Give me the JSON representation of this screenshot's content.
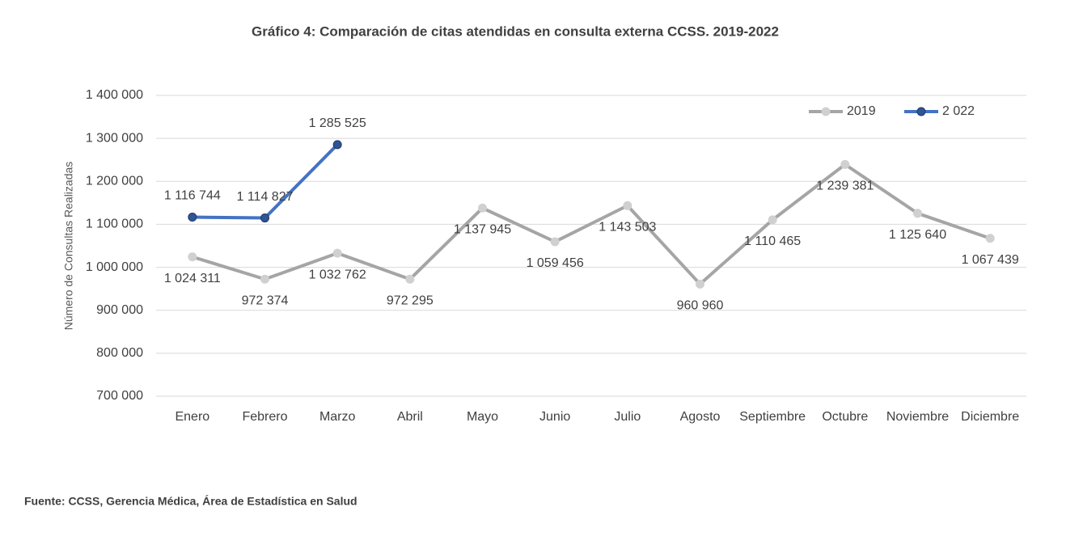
{
  "chart_data": {
    "type": "line",
    "title": "Gráfico 4: Comparación de citas atendidas en consulta externa CCSS. 2019-2022",
    "y_label": "Número de Consultas Realizadas",
    "source": "Fuente: CCSS, Gerencia Médica, Área de Estadística en Salud",
    "categories": [
      "Enero",
      "Febrero",
      "Marzo",
      "Abril",
      "Mayo",
      "Junio",
      "Julio",
      "Agosto",
      "Septiembre",
      "Octubre",
      "Noviembre",
      "Diciembre"
    ],
    "series": [
      {
        "name": "2019",
        "color": "#a5a5a5",
        "marker_color": "#d0d0d0",
        "values": [
          1024311,
          972374,
          1032762,
          972295,
          1137945,
          1059456,
          1143503,
          960960,
          1110465,
          1239381,
          1125640,
          1067439
        ],
        "value_labels": [
          "1 024 311",
          "972 374",
          "1 032 762",
          "972 295",
          "1 137 945",
          "1 059 456",
          "1 143 503",
          "960 960",
          "1 110 465",
          "1 239 381",
          "1 125 640",
          "1 067 439"
        ],
        "label_position": "below"
      },
      {
        "name": "2 022",
        "color": "#4472c4",
        "marker_color": "#2f5597",
        "values": [
          1116744,
          1114827,
          1285525,
          null,
          null,
          null,
          null,
          null,
          null,
          null,
          null,
          null
        ],
        "value_labels": [
          "1 116 744",
          "1 114 827",
          "1 285 525",
          null,
          null,
          null,
          null,
          null,
          null,
          null,
          null,
          null
        ],
        "label_position": "above"
      }
    ],
    "ylim": [
      700000,
      1400000
    ],
    "yticks": [
      {
        "value": 700000,
        "label": "700 000"
      },
      {
        "value": 800000,
        "label": "800 000"
      },
      {
        "value": 900000,
        "label": "900 000"
      },
      {
        "value": 1000000,
        "label": "1 000 000"
      },
      {
        "value": 1100000,
        "label": "1 100 000"
      },
      {
        "value": 1200000,
        "label": "1 200 000"
      },
      {
        "value": 1300000,
        "label": "1 300 000"
      },
      {
        "value": 1400000,
        "label": "1 400 000"
      }
    ],
    "grid": true,
    "legend": "top-right"
  }
}
